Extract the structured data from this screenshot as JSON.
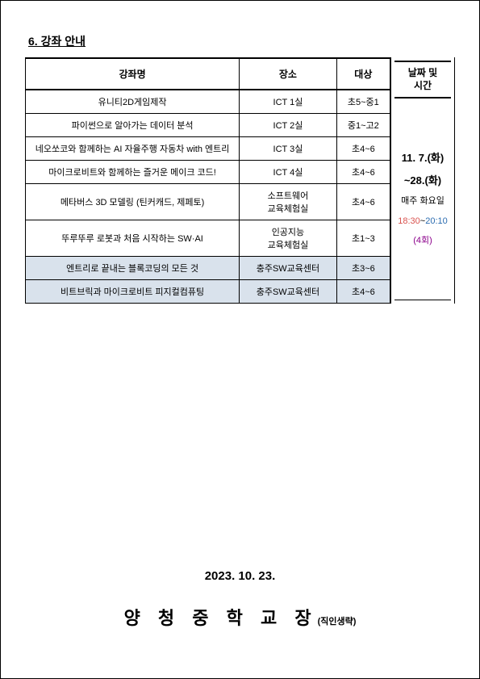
{
  "section_title": "6. 강좌 안내",
  "headers": {
    "course": "강좌명",
    "place": "장소",
    "target": "대상",
    "date": "날짜 및\n시간"
  },
  "rows": [
    {
      "course": "유니티2D게임제작",
      "place": "ICT 1실",
      "target": "초5~중1",
      "highlight": false
    },
    {
      "course": "파이썬으로 알아가는 데이터 분석",
      "place": "ICT 2실",
      "target": "중1~고2",
      "highlight": false
    },
    {
      "course": "네오쏘코와 함께하는 AI 자율주행 자동차 with 엔트리",
      "place": "ICT 3실",
      "target": "초4~6",
      "highlight": false
    },
    {
      "course": "마이크로비트와 함께하는 즐거운 메이크 코드!",
      "place": "ICT 4실",
      "target": "초4~6",
      "highlight": false
    },
    {
      "course": "메타버스 3D 모델링 (틴커캐드, 제페토)",
      "place": "소프트웨어\n교육체험실",
      "target": "초4~6",
      "highlight": false
    },
    {
      "course": "뚜루뚜루 로봇과 처음 시작하는 SW·AI",
      "place": "인공지능\n교육체험실",
      "target": "초1~3",
      "highlight": false
    },
    {
      "course": "엔트리로 끝내는 블록코딩의 모든 것",
      "place": "충주SW교육센터",
      "target": "초3~6",
      "highlight": true
    },
    {
      "course": "비트브릭과 마이크로비트 피지컬컴퓨팅",
      "place": "충주SW교육센터",
      "target": "초4~6",
      "highlight": true
    }
  ],
  "schedule": {
    "date_range_1": "11. 7.(화)",
    "date_range_2": "~28.(화)",
    "weekday": "매주 화요일",
    "time_start": "18:30",
    "time_sep": "~",
    "time_end": "20:10",
    "count": "(4회)"
  },
  "footer": {
    "date": "2023.  10.  23.",
    "signature_main": "양 청 중 학 교 장",
    "signature_sub": "(직인생략)"
  },
  "colors": {
    "highlight_bg": "#d9e2ec",
    "time_start": "#d9534f",
    "time_end": "#2b6cb0",
    "time_count": "#8b008b",
    "border": "#000000",
    "background": "#ffffff"
  }
}
